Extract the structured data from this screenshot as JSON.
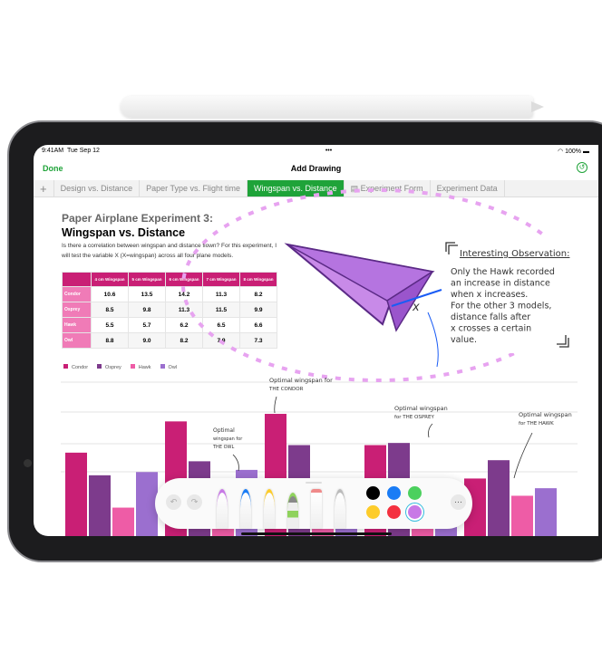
{
  "status": {
    "time": "9:41AM",
    "date": "Tue Sep 12",
    "battery": "100%"
  },
  "nav": {
    "done": "Done",
    "title": "Add Drawing"
  },
  "tabs": [
    {
      "label": "Design vs. Distance"
    },
    {
      "label": "Paper Type vs. Flight time"
    },
    {
      "label": "Wingspan vs. Distance",
      "active": true
    },
    {
      "label": "Experiment Form"
    },
    {
      "label": "Experiment Data"
    }
  ],
  "doc": {
    "heading": "Paper Airplane Experiment 3:",
    "title": "Wingspan vs. Distance",
    "description": "Is there a correlation between wingspan and distance flown? For this experiment, I will test the variable X (X=wingspan) across all four plane models."
  },
  "annotations": {
    "observation_title": "Interesting Observation:",
    "observation": [
      "Only the Hawk recorded",
      "an increase in distance",
      "when x increases.",
      "For the other 3 models,",
      "distance falls after",
      "x crosses a certain",
      "value."
    ],
    "x_label": "x",
    "condor": [
      "Optimal wingspan for",
      "THE CONDOR"
    ],
    "owl": [
      "Optimal",
      "wingspan for",
      "THE OWL"
    ],
    "osprey": [
      "Optimal wingspan",
      "for THE OSPREY"
    ],
    "hawk": [
      "Optimal wingspan",
      "for THE HAWK"
    ]
  },
  "colors": {
    "accent": "#1fa339",
    "condor": "#c91f75",
    "osprey": "#7d3b8c",
    "hawk": "#ee5ca6",
    "owl": "#9b6fcf"
  },
  "toolbar": {
    "undo": "undo-icon",
    "redo": "redo-icon",
    "tools": [
      "pen",
      "marker",
      "crayon",
      "watercolor",
      "eraser",
      "lasso"
    ],
    "colors": [
      "#000000",
      "#1a7cf5",
      "#4cd05e",
      "#fdcc2a",
      "#f4303f",
      "#c879e6"
    ],
    "more": "more-icon"
  },
  "chart_data": {
    "type": "bar",
    "categories": [
      "4 cm Wingspan",
      "5 cm Wingspan",
      "6 cm Wingspan",
      "7 cm Wingspan",
      "8 cm Wingspan"
    ],
    "series": [
      {
        "name": "Condor",
        "values": [
          10.6,
          13.5,
          14.2,
          11.3,
          8.2
        ]
      },
      {
        "name": "Osprey",
        "values": [
          8.5,
          9.8,
          11.3,
          11.5,
          9.9
        ]
      },
      {
        "name": "Hawk",
        "values": [
          5.5,
          5.7,
          6.2,
          6.5,
          6.6
        ]
      },
      {
        "name": "Owl",
        "values": [
          8.8,
          9.0,
          8.2,
          7.9,
          7.3
        ]
      }
    ],
    "legend": "top-left",
    "grid": true
  }
}
